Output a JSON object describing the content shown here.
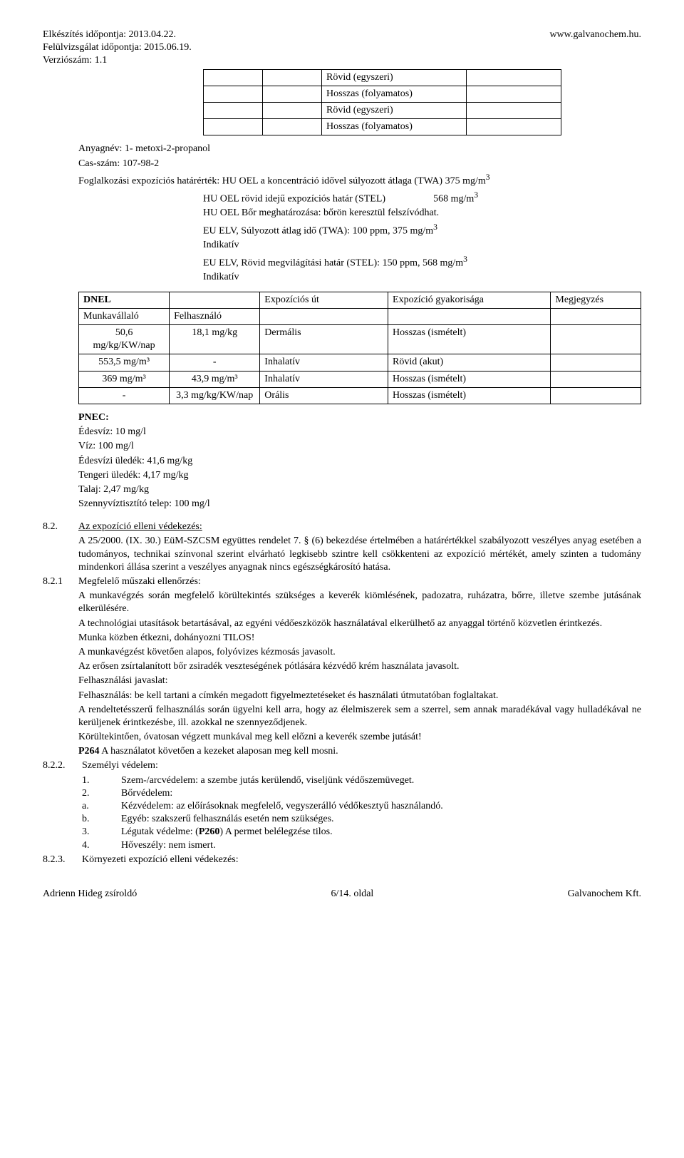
{
  "header": {
    "prep_date_label": "Elkészítés időpontja: 2013.04.22.",
    "review_date_label": "Felülvizsgálat időpontja: 2015.06.19.",
    "version_label": "Verziószám: 1.1",
    "website": "www.galvanochem.hu."
  },
  "mini_table": {
    "rows": [
      [
        "",
        "",
        "Rövid (egyszeri)",
        ""
      ],
      [
        "",
        "",
        "Hosszas (folyamatos)",
        ""
      ],
      [
        "",
        "",
        "Rövid (egyszeri)",
        ""
      ],
      [
        "",
        "",
        "Hosszas (folyamatos)",
        ""
      ]
    ],
    "col_widths": [
      "70px",
      "70px",
      "190px",
      "120px"
    ]
  },
  "substance": {
    "name_label": "Anyagnév: 1- metoxi-2-propanol",
    "cas_label": "Cas-szám: 107-98-2",
    "limit_line": "Foglalkozási expozíciós határérték: HU OEL a koncentráció idővel súlyozott átlaga (TWA) 375 mg/m",
    "limit_sup": "3",
    "stel_line": "HU OEL rövid idejű expozíciós határ (STEL)",
    "stel_value": "568 mg/m",
    "stel_sup": "3",
    "skin_line": "HU OEL Bőr meghatározása: bőrön keresztül felszívódhat.",
    "eu_twa": "EU ELV, Súlyozott átlag idő (TWA): 100 ppm, 375 mg/m",
    "eu_twa_sup": "3",
    "indicative1": "Indikatív",
    "eu_stel": "EU ELV, Rövid megvilágítási határ (STEL): 150 ppm, 568 mg/m",
    "eu_stel_sup": "3",
    "indicative2": "Indikatív"
  },
  "dnel": {
    "headers": [
      "DNEL",
      "",
      "Expozíciós út",
      "Expozíció gyakorisága",
      "Megjegyzés"
    ],
    "sub_headers": [
      "Munkavállaló",
      "Felhasználó",
      "",
      "",
      ""
    ],
    "rows": [
      [
        "50,6 mg/kg/KW/nap",
        "18,1 mg/kg",
        "Dermális",
        "Hosszas (ismételt)",
        ""
      ],
      [
        "553,5 mg/m³",
        "-",
        "Inhalatív",
        "Rövid (akut)",
        ""
      ],
      [
        "369 mg/m³",
        "43,9 mg/m³",
        "Inhalatív",
        "Hosszas (ismételt)",
        ""
      ],
      [
        "-",
        "3,3 mg/kg/KW/nap",
        "Orális",
        "Hosszas (ismételt)",
        ""
      ]
    ],
    "col_widths": [
      "115px",
      "115px",
      "170px",
      "220px",
      "115px"
    ]
  },
  "pnec": {
    "title": "PNEC:",
    "lines": [
      "Édesvíz: 10 mg/l",
      "Víz: 100 mg/l",
      "Édesvízi üledék: 41,6 mg/kg",
      "Tengeri üledék: 4,17 mg/kg",
      "Talaj: 2,47 mg/kg",
      "Szennyvíztisztító telep: 100 mg/l"
    ]
  },
  "sections": {
    "s82": {
      "num": "8.2.",
      "title": "Az expozíció elleni védekezés:",
      "body": "A 25/2000. (IX. 30.) EüM-SZCSM együttes rendelet 7. § (6) bekezdése értelmében a határértékkel szabályozott veszélyes anyag esetében a tudományos, technikai színvonal szerint elvárható legkisebb szintre kell csökkenteni az expozíció mértékét, amely szinten a tudomány mindenkori állása szerint a veszélyes anyagnak nincs egészségkárosító hatása."
    },
    "s821": {
      "num": "8.2.1",
      "title": "Megfelelő műszaki ellenőrzés:",
      "p1": "A munkavégzés során megfelelő körültekintés szükséges a keverék kiömlésének, padozatra, ruházatra, bőrre, illetve szembe jutásának elkerülésére.",
      "p2": "A technológiai utasítások betartásával, az egyéni védőeszközök használatával elkerülhető az anyaggal történő közvetlen érintkezés.",
      "p3": "Munka közben étkezni, dohányozni TILOS!",
      "p4": "A munkavégzést követően alapos, folyóvizes kézmosás javasolt.",
      "p5": "Az erősen zsírtalanított bőr zsiradék veszteségének pótlására kézvédő krém használata javasolt.",
      "p6": "Felhasználási javaslat:",
      "p7": "Felhasználás: be kell tartani a címkén megadott figyelmeztetéseket és használati útmutatóban foglaltakat.",
      "p8": "A rendeltetésszerű felhasználás során ügyelni kell arra, hogy az élelmiszerek sem a szerrel, sem annak maradékával vagy hulladékával ne kerüljenek érintkezésbe, ill. azokkal ne szennyeződjenek.",
      "p9": "Körültekintően, óvatosan végzett munkával meg kell előzni a keverék szembe jutását!",
      "p10_bold": "P264",
      "p10_rest": " A használatot követően a kezeket alaposan meg kell mosni."
    },
    "s822": {
      "num": "8.2.2.",
      "title": "Személyi védelem:",
      "items": [
        {
          "n": "1.",
          "t": "Szem-/arcvédelem: a szembe jutás kerülendő, viseljünk védőszemüveget."
        },
        {
          "n": "2.",
          "t": "Bőrvédelem:"
        },
        {
          "n": "a.",
          "t": "Kézvédelem: az előírásoknak megfelelő, vegyszerálló védőkesztyű használandó."
        },
        {
          "n": "b.",
          "t": "Egyéb: szakszerű felhasználás esetén nem szükséges."
        },
        {
          "n": "3.",
          "t": "Légutak védelme: (P260) A permet belélegzése tilos."
        },
        {
          "n": "4.",
          "t": "Hőveszély: nem ismert."
        }
      ],
      "p260_bold": "P260"
    },
    "s823": {
      "num": "8.2.3.",
      "title": "Környezeti expozíció elleni védekezés:"
    }
  },
  "footer": {
    "left": "Adrienn Hideg zsíroldó",
    "center": "6/14. oldal",
    "right": "Galvanochem Kft."
  }
}
